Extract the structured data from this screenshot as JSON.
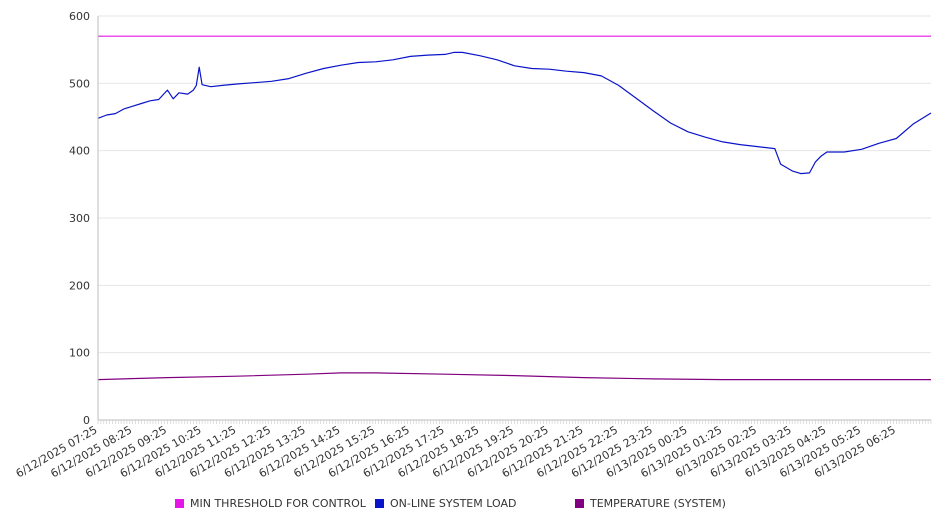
{
  "colors": {
    "threshold": "#e617e6",
    "load": "#0a14c8",
    "temperature": "#800080",
    "grid": "#e6e6e6",
    "axis": "#bdbdbd"
  },
  "chart_data": {
    "type": "line",
    "title": "",
    "xlabel": "",
    "ylabel": "",
    "ylim": [
      0,
      600
    ],
    "yticks": [
      0,
      100,
      200,
      300,
      400,
      500,
      600
    ],
    "grid": true,
    "legend_position": "bottom",
    "x_tick_labels": [
      "6/12/2025 07:25",
      "6/12/2025 08:25",
      "6/12/2025 09:25",
      "6/12/2025 10:25",
      "6/12/2025 11:25",
      "6/12/2025 12:25",
      "6/12/2025 13:25",
      "6/12/2025 14:25",
      "6/12/2025 15:25",
      "6/12/2025 16:25",
      "6/12/2025 17:25",
      "6/12/2025 18:25",
      "6/12/2025 19:25",
      "6/12/2025 20:25",
      "6/12/2025 21:25",
      "6/12/2025 22:25",
      "6/12/2025 23:25",
      "6/13/2025 00:25",
      "6/13/2025 01:25",
      "6/13/2025 02:25",
      "6/13/2025 03:25",
      "6/13/2025 04:25",
      "6/13/2025 05:25",
      "6/13/2025 06:25"
    ],
    "x_start": "6/12/2025 07:25",
    "x_end": "6/13/2025 07:25",
    "series": [
      {
        "name": "MIN THRESHOLD FOR CONTROL",
        "color": "#e617e6",
        "points": [
          [
            "6/12/2025 07:25",
            570
          ],
          [
            "6/13/2025 07:25",
            570
          ]
        ]
      },
      {
        "name": "ON-LINE SYSTEM LOAD",
        "color": "#0a14c8",
        "points": [
          [
            "6/12/2025 07:25",
            448
          ],
          [
            "6/12/2025 07:40",
            453
          ],
          [
            "6/12/2025 07:55",
            455
          ],
          [
            "6/12/2025 08:10",
            462
          ],
          [
            "6/12/2025 08:25",
            466
          ],
          [
            "6/12/2025 08:40",
            470
          ],
          [
            "6/12/2025 08:55",
            474
          ],
          [
            "6/12/2025 09:10",
            476
          ],
          [
            "6/12/2025 09:25",
            490
          ],
          [
            "6/12/2025 09:35",
            477
          ],
          [
            "6/12/2025 09:45",
            486
          ],
          [
            "6/12/2025 10:00",
            484
          ],
          [
            "6/12/2025 10:10",
            490
          ],
          [
            "6/12/2025 10:15",
            497
          ],
          [
            "6/12/2025 10:20",
            524
          ],
          [
            "6/12/2025 10:25",
            498
          ],
          [
            "6/12/2025 10:40",
            495
          ],
          [
            "6/12/2025 11:00",
            497
          ],
          [
            "6/12/2025 11:25",
            499
          ],
          [
            "6/12/2025 11:55",
            501
          ],
          [
            "6/12/2025 12:25",
            503
          ],
          [
            "6/12/2025 12:55",
            507
          ],
          [
            "6/12/2025 13:25",
            515
          ],
          [
            "6/12/2025 13:55",
            522
          ],
          [
            "6/12/2025 14:25",
            527
          ],
          [
            "6/12/2025 14:55",
            531
          ],
          [
            "6/12/2025 15:25",
            532
          ],
          [
            "6/12/2025 15:55",
            535
          ],
          [
            "6/12/2025 16:25",
            540
          ],
          [
            "6/12/2025 16:55",
            542
          ],
          [
            "6/12/2025 17:25",
            543
          ],
          [
            "6/12/2025 17:40",
            546
          ],
          [
            "6/12/2025 17:55",
            546
          ],
          [
            "6/12/2025 18:25",
            541
          ],
          [
            "6/12/2025 18:55",
            535
          ],
          [
            "6/12/2025 19:25",
            526
          ],
          [
            "6/12/2025 19:55",
            522
          ],
          [
            "6/12/2025 20:25",
            521
          ],
          [
            "6/12/2025 20:55",
            518
          ],
          [
            "6/12/2025 21:25",
            516
          ],
          [
            "6/12/2025 21:55",
            511
          ],
          [
            "6/12/2025 22:25",
            497
          ],
          [
            "6/12/2025 22:55",
            478
          ],
          [
            "6/12/2025 23:25",
            459
          ],
          [
            "6/12/2025 23:55",
            441
          ],
          [
            "6/13/2025 00:25",
            428
          ],
          [
            "6/13/2025 00:55",
            420
          ],
          [
            "6/13/2025 01:25",
            413
          ],
          [
            "6/13/2025 01:55",
            409
          ],
          [
            "6/13/2025 02:25",
            406
          ],
          [
            "6/13/2025 02:55",
            403
          ],
          [
            "6/13/2025 03:05",
            380
          ],
          [
            "6/13/2025 03:25",
            370
          ],
          [
            "6/13/2025 03:40",
            366
          ],
          [
            "6/13/2025 03:55",
            367
          ],
          [
            "6/13/2025 04:05",
            383
          ],
          [
            "6/13/2025 04:15",
            392
          ],
          [
            "6/13/2025 04:25",
            398
          ],
          [
            "6/13/2025 04:55",
            398
          ],
          [
            "6/13/2025 05:25",
            402
          ],
          [
            "6/13/2025 05:55",
            411
          ],
          [
            "6/13/2025 06:25",
            418
          ],
          [
            "6/13/2025 06:55",
            440
          ],
          [
            "6/13/2025 07:25",
            456
          ]
        ]
      },
      {
        "name": "TEMPERATURE (SYSTEM)",
        "color": "#800080",
        "points": [
          [
            "6/12/2025 07:25",
            60
          ],
          [
            "6/12/2025 09:25",
            63
          ],
          [
            "6/12/2025 11:25",
            65
          ],
          [
            "6/12/2025 13:25",
            68
          ],
          [
            "6/12/2025 14:25",
            70
          ],
          [
            "6/12/2025 15:25",
            70
          ],
          [
            "6/12/2025 17:25",
            68
          ],
          [
            "6/12/2025 19:25",
            66
          ],
          [
            "6/12/2025 21:25",
            63
          ],
          [
            "6/12/2025 23:25",
            61
          ],
          [
            "6/13/2025 01:25",
            60
          ],
          [
            "6/13/2025 07:25",
            60
          ]
        ]
      }
    ]
  }
}
